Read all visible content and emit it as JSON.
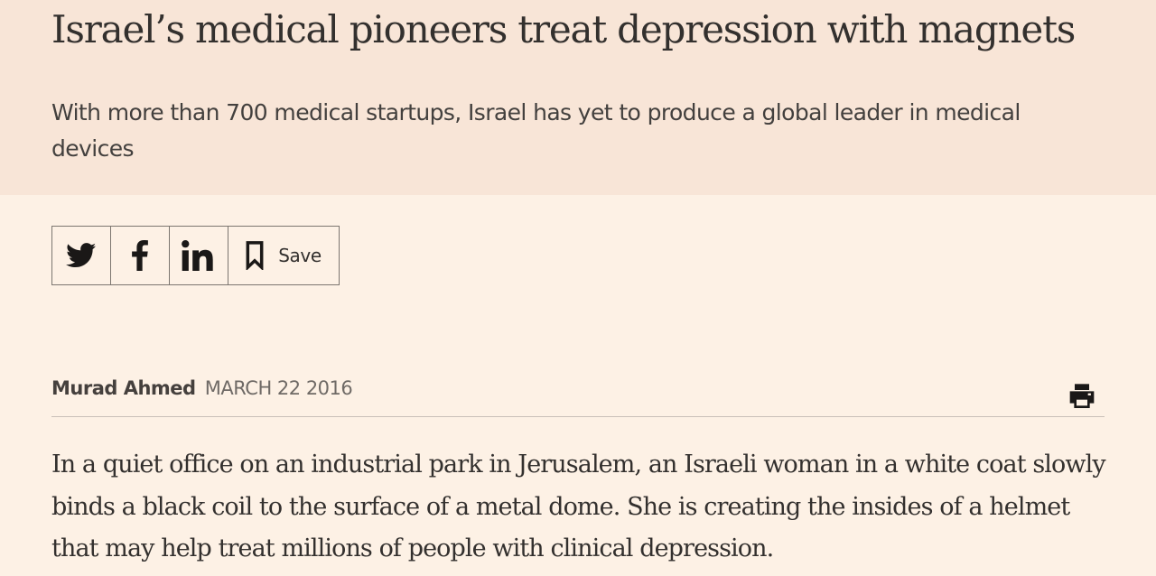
{
  "article": {
    "headline": "Israel’s medical pioneers treat depression with magnets",
    "standfirst": "With more than 700 medical startups, Israel has yet to produce a global leader in medical devices",
    "byline": {
      "author": "Murad Ahmed",
      "date": "MARCH 22 2016"
    },
    "body_first_paragraph": "In a quiet office on an industrial park in Jerusalem, an Israeli woman in a white coat slowly binds a black coil to the surface of a metal dome. She is creating the insides of a helmet that may help treat millions of people with clinical depression."
  },
  "share_bar": {
    "buttons": [
      {
        "icon": "twitter-icon"
      },
      {
        "icon": "facebook-icon"
      },
      {
        "icon": "linkedin-icon"
      }
    ],
    "save_label": "Save",
    "save_icon": "bookmark-icon"
  },
  "toolbar": {
    "print_icon": "printer-icon"
  },
  "colors": {
    "page_background": "#fdf1e5",
    "header_background": "#f8e5d7",
    "text": "#33302e",
    "border": "#7c7670"
  }
}
